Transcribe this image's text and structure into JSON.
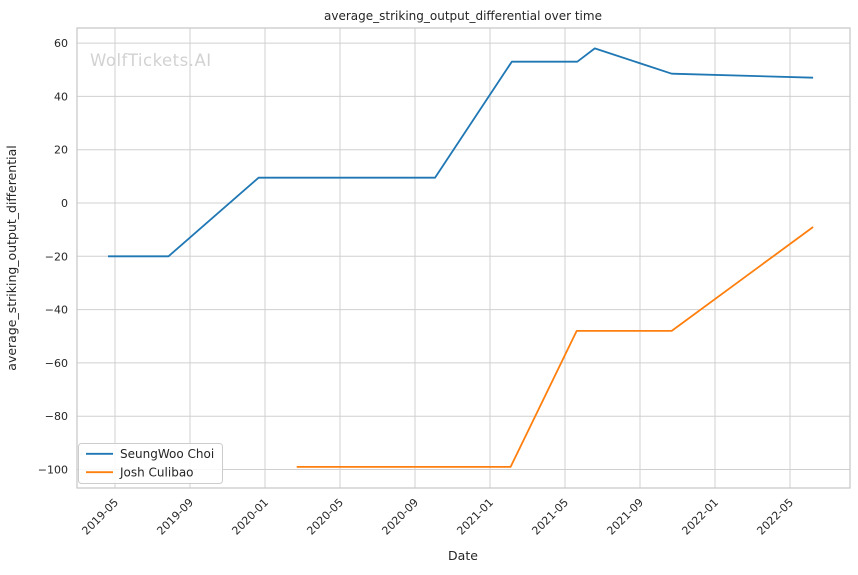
{
  "watermark": "WolfTickets.AI",
  "chart_data": {
    "type": "line",
    "title": "average_striking_output_differential over time",
    "xlabel": "Date",
    "ylabel": "average_striking_output_differential",
    "grid": true,
    "legend_position": "lower left",
    "x_tick_labels": [
      "2019-05",
      "2019-09",
      "2020-01",
      "2020-05",
      "2020-09",
      "2021-01",
      "2021-05",
      "2021-09",
      "2022-01",
      "2022-05"
    ],
    "y_tick_values": [
      60,
      40,
      20,
      0,
      -20,
      -40,
      -60,
      -80,
      -100
    ],
    "xlim": [
      "2019-02-28",
      "2022-08-07"
    ],
    "ylim": [
      -106.9,
      65.7
    ],
    "series": [
      {
        "name": "SeungWoo Choi",
        "color": "#1f77b4",
        "points": [
          [
            "2019-04-20",
            -20
          ],
          [
            "2019-07-27",
            -20
          ],
          [
            "2019-12-21",
            9.5
          ],
          [
            "2020-10-03",
            9.5
          ],
          [
            "2021-02-06",
            53
          ],
          [
            "2021-05-21",
            53
          ],
          [
            "2021-06-19",
            58
          ],
          [
            "2021-10-22",
            48.5
          ],
          [
            "2022-06-08",
            47
          ]
        ]
      },
      {
        "name": "Josh Culibao",
        "color": "#ff7f0e",
        "points": [
          [
            "2020-02-22",
            -99
          ],
          [
            "2021-02-04",
            -99
          ],
          [
            "2021-05-20",
            -48
          ],
          [
            "2021-10-22",
            -48
          ],
          [
            "2022-06-08",
            -9
          ]
        ]
      }
    ]
  }
}
